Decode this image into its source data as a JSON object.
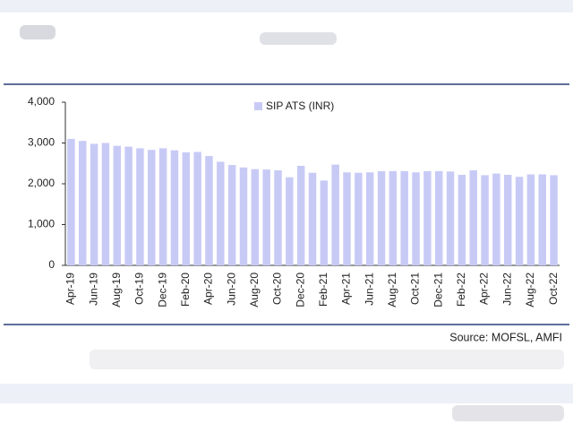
{
  "chart_data": {
    "type": "bar",
    "legend": "SIP ATS (INR)",
    "source": "Source: MOFSL, AMFI",
    "color": "#c8caf6",
    "categories": [
      "Apr-19",
      null,
      "Jun-19",
      null,
      "Aug-19",
      null,
      "Oct-19",
      null,
      "Dec-19",
      null,
      "Feb-20",
      null,
      "Apr-20",
      null,
      "Jun-20",
      null,
      "Aug-20",
      null,
      "Oct-20",
      null,
      "Dec-20",
      null,
      "Feb-21",
      null,
      "Apr-21",
      null,
      "Jun-21",
      null,
      "Aug-21",
      null,
      "Oct-21",
      null,
      "Dec-21",
      null,
      "Feb-22",
      null,
      "Apr-22",
      null,
      "Jun-22",
      null,
      "Aug-22",
      null,
      "Oct-22"
    ],
    "values": [
      3100,
      3050,
      2980,
      3000,
      2930,
      2910,
      2870,
      2830,
      2870,
      2820,
      2770,
      2780,
      2680,
      2540,
      2460,
      2400,
      2360,
      2350,
      2330,
      2160,
      2440,
      2270,
      2080,
      2470,
      2280,
      2270,
      2280,
      2310,
      2310,
      2310,
      2280,
      2310,
      2310,
      2300,
      2220,
      2330,
      2210,
      2250,
      2220,
      2170,
      2230,
      2230,
      2210
    ],
    "ylim": [
      0,
      4000
    ],
    "yticks": [
      0,
      {
        "value": 1000,
        "label": "1,000"
      },
      {
        "value": 2000,
        "label": "2,000"
      },
      {
        "value": 3000,
        "label": "3,000"
      },
      {
        "value": 4000,
        "label": "4,000"
      }
    ],
    "grid": false
  }
}
